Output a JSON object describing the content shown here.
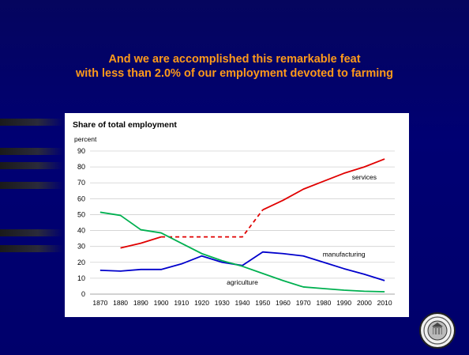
{
  "slide": {
    "title_line1": "And we are accomplished this remarkable feat",
    "title_line2": "with less than 2.0% of our employment devoted to farming",
    "title_color": "#ff9a1a",
    "background_color": "#000070"
  },
  "chart_data": {
    "type": "line",
    "title": "Share of total employment",
    "ylabel": "percent",
    "xlabel": "",
    "ylim": [
      0,
      90
    ],
    "yticks": [
      0,
      10,
      20,
      30,
      40,
      50,
      60,
      70,
      80,
      90
    ],
    "x": [
      1870,
      1880,
      1890,
      1900,
      1910,
      1920,
      1930,
      1940,
      1950,
      1960,
      1970,
      1980,
      1990,
      2000,
      2010
    ],
    "grid": "horizontal",
    "series": [
      {
        "name": "services",
        "color": "#e00000",
        "values": [
          null,
          29,
          32,
          36,
          null,
          null,
          null,
          null,
          53,
          59,
          66,
          71,
          76,
          80,
          85
        ],
        "gap_connector": {
          "from_x": 1900,
          "to_x": 1940,
          "y": 36,
          "end_value_at_1940": 36,
          "style": "dashed"
        }
      },
      {
        "name": "manufacturing",
        "color": "#0000cc",
        "values": [
          15,
          14.5,
          15.5,
          15.5,
          19,
          24,
          20,
          18,
          26.5,
          25.5,
          24,
          20,
          16,
          12.5,
          8.5
        ]
      },
      {
        "name": "agriculture",
        "color": "#00b050",
        "values": [
          51.5,
          49.5,
          40.5,
          38.5,
          32,
          25.5,
          21,
          17.5,
          13,
          8.5,
          4.5,
          3.5,
          2.5,
          1.8,
          1.5
        ]
      }
    ]
  }
}
